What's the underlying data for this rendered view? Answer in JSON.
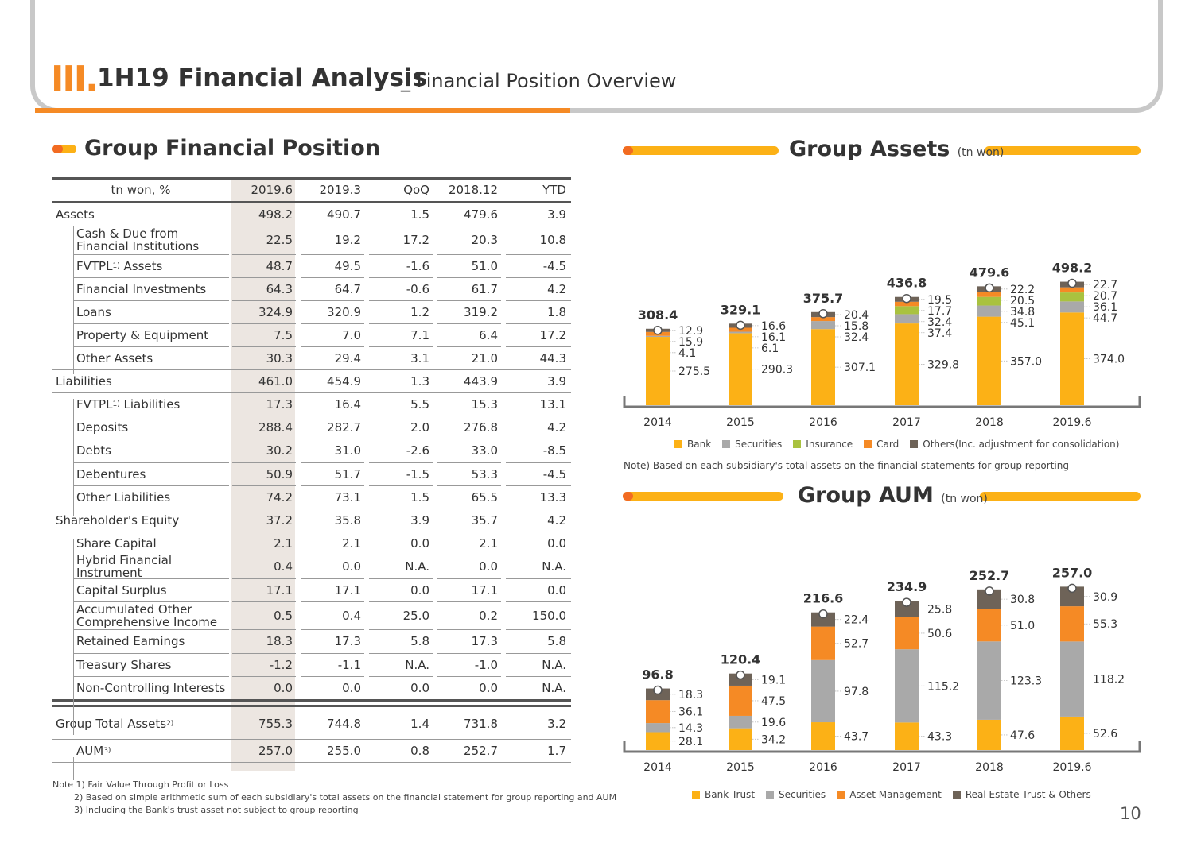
{
  "header": {
    "section_numeral": "III.",
    "title": "1H19 Financial Analysis",
    "subtitle": "_ Financial Position Overview"
  },
  "table_section": {
    "title": "Group Financial Position"
  },
  "table": {
    "columns": [
      "tn won, %",
      "2019.6",
      "2019.3",
      "QoQ",
      "2018.12",
      "YTD"
    ],
    "rows": [
      {
        "label": "Assets",
        "sup": "",
        "sub": false,
        "values": [
          "498.2",
          "490.7",
          "1.5",
          "479.6",
          "3.9"
        ]
      },
      {
        "label": "Cash & Due from Financial Institutions",
        "sup": "",
        "sub": true,
        "values": [
          "22.5",
          "19.2",
          "17.2",
          "20.3",
          "10.8"
        ]
      },
      {
        "label": "FVTPL",
        "sup": "1)",
        "label_suffix": " Assets",
        "sub": true,
        "values": [
          "48.7",
          "49.5",
          "-1.6",
          "51.0",
          "-4.5"
        ]
      },
      {
        "label": "Financial Investments",
        "sup": "",
        "sub": true,
        "values": [
          "64.3",
          "64.7",
          "-0.6",
          "61.7",
          "4.2"
        ]
      },
      {
        "label": "Loans",
        "sup": "",
        "sub": true,
        "values": [
          "324.9",
          "320.9",
          "1.2",
          "319.2",
          "1.8"
        ]
      },
      {
        "label": "Property & Equipment",
        "sup": "",
        "sub": true,
        "values": [
          "7.5",
          "7.0",
          "7.1",
          "6.4",
          "17.2"
        ]
      },
      {
        "label": "Other Assets",
        "sup": "",
        "sub": true,
        "values": [
          "30.3",
          "29.4",
          "3.1",
          "21.0",
          "44.3"
        ]
      },
      {
        "label": "Liabilities",
        "sup": "",
        "sub": false,
        "values": [
          "461.0",
          "454.9",
          "1.3",
          "443.9",
          "3.9"
        ]
      },
      {
        "label": "FVTPL",
        "sup": "1)",
        "label_suffix": " Liabilities",
        "sub": true,
        "values": [
          "17.3",
          "16.4",
          "5.5",
          "15.3",
          "13.1"
        ]
      },
      {
        "label": "Deposits",
        "sup": "",
        "sub": true,
        "values": [
          "288.4",
          "282.7",
          "2.0",
          "276.8",
          "4.2"
        ]
      },
      {
        "label": "Debts",
        "sup": "",
        "sub": true,
        "values": [
          "30.2",
          "31.0",
          "-2.6",
          "33.0",
          "-8.5"
        ]
      },
      {
        "label": "Debentures",
        "sup": "",
        "sub": true,
        "values": [
          "50.9",
          "51.7",
          "-1.5",
          "53.3",
          "-4.5"
        ]
      },
      {
        "label": "Other Liabilities",
        "sup": "",
        "sub": true,
        "values": [
          "74.2",
          "73.1",
          "1.5",
          "65.5",
          "13.3"
        ]
      },
      {
        "label": "Shareholder's Equity",
        "sup": "",
        "sub": false,
        "values": [
          "37.2",
          "35.8",
          "3.9",
          "35.7",
          "4.2"
        ]
      },
      {
        "label": "Share Capital",
        "sup": "",
        "sub": true,
        "values": [
          "2.1",
          "2.1",
          "0.0",
          "2.1",
          "0.0"
        ]
      },
      {
        "label": "Hybrid Financial Instrument",
        "sup": "",
        "sub": true,
        "values": [
          "0.4",
          "0.0",
          "N.A.",
          "0.0",
          "N.A."
        ]
      },
      {
        "label": "Capital Surplus",
        "sup": "",
        "sub": true,
        "values": [
          "17.1",
          "17.1",
          "0.0",
          "17.1",
          "0.0"
        ]
      },
      {
        "label": "Accumulated Other Comprehensive Income",
        "sup": "",
        "sub": true,
        "values": [
          "0.5",
          "0.4",
          "25.0",
          "0.2",
          "150.0"
        ]
      },
      {
        "label": "Retained Earnings",
        "sup": "",
        "sub": true,
        "values": [
          "18.3",
          "17.3",
          "5.8",
          "17.3",
          "5.8"
        ]
      },
      {
        "label": "Treasury Shares",
        "sup": "",
        "sub": true,
        "values": [
          "-1.2",
          "-1.1",
          "N.A.",
          "-1.0",
          "N.A."
        ]
      },
      {
        "label": "Non-Controlling Interests",
        "sup": "",
        "sub": true,
        "values": [
          "0.0",
          "0.0",
          "0.0",
          "0.0",
          "N.A."
        ]
      },
      {
        "label": "Group Total Assets",
        "sup": "2)",
        "label_suffix": "",
        "sub": false,
        "values": [
          "755.3",
          "744.8",
          "1.4",
          "731.8",
          "3.2"
        ]
      },
      {
        "label": "AUM",
        "sup": "3)",
        "label_suffix": "",
        "sub": true,
        "values": [
          "257.0",
          "255.0",
          "0.8",
          "252.7",
          "1.7"
        ]
      }
    ]
  },
  "notes": [
    "Note 1) Fair Value Through Profit or Loss",
    "2) Based on simple arithmetic sum of each subsidiary's total assets on the financial statement for group reporting and AUM",
    "3) Including the Bank's trust asset not subject to group reporting"
  ],
  "page_number": "10",
  "chart_data": [
    {
      "type": "bar",
      "stacked": true,
      "title": "Group Assets",
      "unit": "(tn won)",
      "categories": [
        "2014",
        "2015",
        "2016",
        "2017",
        "2018",
        "2019.6"
      ],
      "totals": [
        "308.4",
        "329.1",
        "375.7",
        "436.8",
        "479.6",
        "498.2"
      ],
      "series": [
        {
          "name": "Bank",
          "color": "#fcb116",
          "values": [
            275.5,
            290.3,
            307.1,
            329.8,
            357.0,
            374.0
          ]
        },
        {
          "name": "Securities",
          "color": "#a9a9a9",
          "values": [
            4.1,
            6.1,
            32.4,
            37.4,
            45.1,
            44.7
          ]
        },
        {
          "name": "Insurance",
          "color": "#a9c23f",
          "values": [
            null,
            null,
            null,
            32.4,
            34.8,
            36.1
          ]
        },
        {
          "name": "Card",
          "color": "#f58a25",
          "values": [
            15.9,
            16.1,
            15.8,
            17.7,
            20.5,
            20.7
          ]
        },
        {
          "name": "Others(Inc. adjustment for consolidation)",
          "color": "#6e6358",
          "values": [
            12.9,
            16.6,
            20.4,
            19.5,
            22.2,
            22.7
          ]
        }
      ],
      "note": "Note) Based on each subsidiary's total assets on the financial statements for group reporting"
    },
    {
      "type": "bar",
      "stacked": true,
      "title": "Group AUM",
      "unit": "(tn won)",
      "categories": [
        "2014",
        "2015",
        "2016",
        "2017",
        "2018",
        "2019.6"
      ],
      "totals": [
        "96.8",
        "120.4",
        "216.6",
        "234.9",
        "252.7",
        "257.0"
      ],
      "series": [
        {
          "name": "Bank Trust",
          "color": "#fcb116",
          "values": [
            28.1,
            34.2,
            43.7,
            43.3,
            47.6,
            52.6
          ]
        },
        {
          "name": "Securities",
          "color": "#a9a9a9",
          "values": [
            14.3,
            19.6,
            97.8,
            115.2,
            123.3,
            118.2
          ]
        },
        {
          "name": "Asset Management",
          "color": "#f58a25",
          "values": [
            36.1,
            47.5,
            52.7,
            50.6,
            51.0,
            55.3
          ]
        },
        {
          "name": "Real Estate Trust & Others",
          "color": "#6e6358",
          "values": [
            18.3,
            19.1,
            22.4,
            25.8,
            30.8,
            30.9
          ]
        }
      ]
    }
  ]
}
